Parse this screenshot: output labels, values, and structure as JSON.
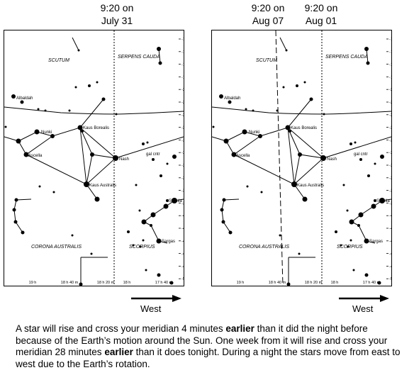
{
  "headers": {
    "left": {
      "time": "9:20 on",
      "date": "July 31"
    },
    "right_a": {
      "time": "9:20 on",
      "date": "Aug 07"
    },
    "right_b": {
      "time": "9:20 on",
      "date": "Aug 01"
    }
  },
  "dec_labels": [
    "-12d",
    "-14d",
    "-16d",
    "-18d",
    "-20d",
    "-22d",
    "-24d",
    "-26d",
    "-28d",
    "-30d",
    "-32d",
    "-34d",
    "-36d",
    "-38d",
    "-40d",
    "-42d",
    "-44d",
    "-46d",
    "-48d",
    "-50d"
  ],
  "ra_labels": [
    "19 h",
    "18 h 40 m",
    "18 h 20 m",
    "18 h",
    "17 h 40 m"
  ],
  "constellations": [
    "SCUTUM",
    "SERPENS CAUDA",
    "CORONA AUSTRALIS",
    "SCORPIUS"
  ],
  "star_names": {
    "albaldah": "Albaldah",
    "nunki": "Nunki",
    "kaus_borealis": "Kaus Borealis",
    "ascella": "Ascella",
    "nash": "Nash",
    "kaus_australis": "Kaus Australis",
    "gal_cntr": "gal cntr",
    "shaula": "Shaula",
    "sargas": "Sargas"
  },
  "west_label": "West",
  "caption": {
    "p1": "A star will rise and cross your meridian 4 minutes ",
    "b1": "earlier",
    "p2": " than it did the night before because of the Earth’s motion around the Sun. One week from it will rise and cross your meridian 28 minutes ",
    "b2": "earlier",
    "p3": " than it does tonight. During a night the stars move from east to west due to the Earth’s rotation."
  }
}
